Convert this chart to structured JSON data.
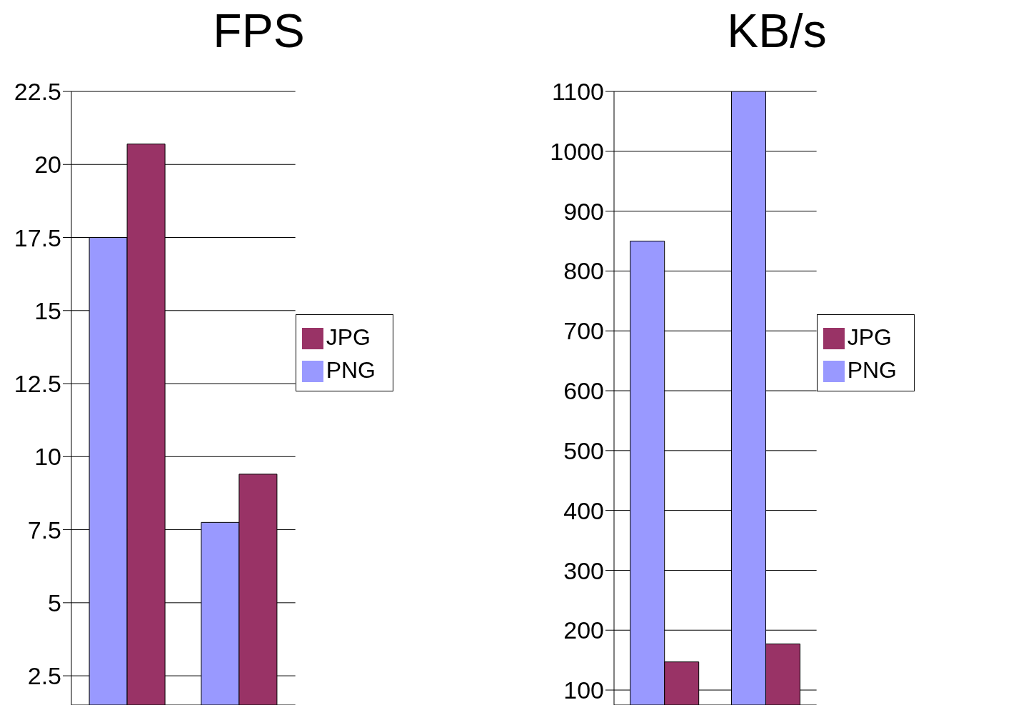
{
  "chart_data": [
    {
      "type": "bar",
      "title": "FPS",
      "categories": [
        null,
        null
      ],
      "series": [
        {
          "name": "PNG",
          "color": "#9999ff",
          "values": [
            17.5,
            7.75
          ]
        },
        {
          "name": "JPG",
          "color": "#993366",
          "values": [
            20.7,
            9.4
          ]
        }
      ],
      "ylim": [
        1.5,
        22.5
      ],
      "yticks": [
        2.5,
        5,
        7.5,
        10,
        12.5,
        15,
        17.5,
        20,
        22.5
      ],
      "grid": "y",
      "legend": "right",
      "tick_labels": "y"
    },
    {
      "type": "bar",
      "title": "KB/s",
      "categories": [
        null,
        null
      ],
      "series": [
        {
          "name": "PNG",
          "color": "#9999ff",
          "values": [
            850,
            1100
          ]
        },
        {
          "name": "JPG",
          "color": "#993366",
          "values": [
            147,
            177
          ]
        }
      ],
      "ylim": [
        75,
        1100
      ],
      "yticks": [
        100,
        200,
        300,
        400,
        500,
        600,
        700,
        800,
        900,
        1000,
        1100
      ],
      "grid": "y",
      "legend": "right",
      "tick_labels": "y"
    }
  ]
}
